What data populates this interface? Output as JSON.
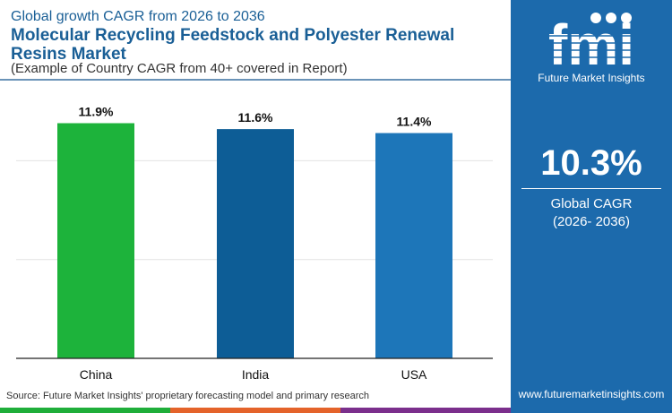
{
  "header": {
    "subtitle": "Global growth CAGR from 2026 to 2036",
    "title": "Molecular Recycling Feedstock and Polyester Renewal Resins Market",
    "note": "(Example of Country CAGR from 40+ covered in Report)"
  },
  "sidebar": {
    "brand": "Future Market Insights",
    "cagr_value": "10.3%",
    "cagr_label": "Global CAGR",
    "cagr_period": "(2026- 2036)",
    "url": "www.futuremarketinsights.com",
    "background": "#1c6aac"
  },
  "footer": {
    "source": "Source: Future Market Insights' proprietary forecasting model and primary research",
    "strip_colors": [
      "#1fae3a",
      "#e4632a",
      "#7b2f8c"
    ]
  },
  "chart_data": {
    "type": "bar",
    "categories": [
      "China",
      "India",
      "USA"
    ],
    "values": [
      11.9,
      11.6,
      11.4
    ],
    "data_labels": [
      "11.9%",
      "11.6%",
      "11.4%"
    ],
    "colors": [
      "#1db33b",
      "#0d5d96",
      "#1d76b9"
    ],
    "ylim": [
      0,
      13.6
    ],
    "grid": true,
    "gridlines": [
      5,
      10
    ],
    "xlabel": "",
    "ylabel": "",
    "legend": "none"
  }
}
